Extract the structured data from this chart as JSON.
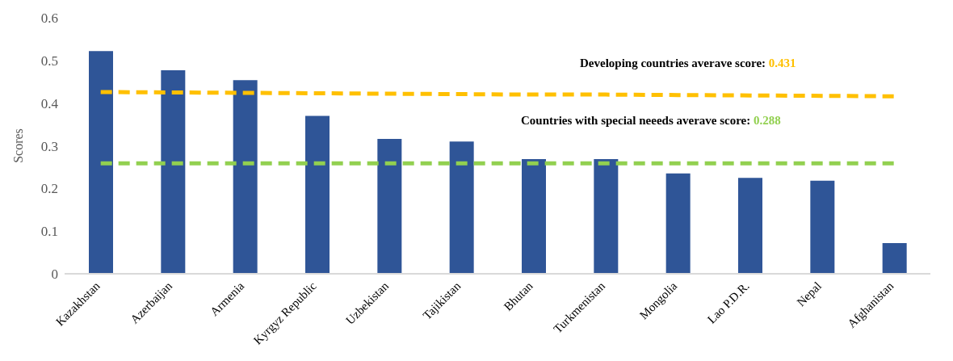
{
  "chart_data": {
    "type": "bar",
    "ylabel": "Scores",
    "categories": [
      "Kazakhstan",
      "Azerbaijan",
      "Armenia",
      "Kyrgyz Republic",
      "Uzbekistan",
      "Tajikistan",
      "Bhutan",
      "Turkmenistan",
      "Mongolia",
      "Lao P.D.R.",
      "Nepal",
      "Afghanistan"
    ],
    "series": [
      {
        "color": "#2f5597",
        "values": [
          0.522,
          0.477,
          0.454,
          0.37,
          0.316,
          0.31,
          0.269,
          0.269,
          0.235,
          0.225,
          0.218,
          0.072
        ]
      },
      {
        "type": "line",
        "color": "#ffc000",
        "values": [
          0.426,
          0.425,
          0.424,
          0.423,
          0.422,
          0.421,
          0.42,
          0.42,
          0.419,
          0.418,
          0.417,
          0.416
        ]
      },
      {
        "type": "line",
        "color": "#92d050",
        "values": [
          0.259,
          0.259,
          0.259,
          0.259,
          0.259,
          0.259,
          0.259,
          0.259,
          0.259,
          0.259,
          0.259,
          0.259
        ]
      }
    ],
    "annotations": [
      "Developing countries averave score: 0.431",
      "Countries with special neeeds averave score: 0.288"
    ],
    "ylim": [
      0,
      0.6
    ],
    "yticks": [
      0,
      0.1,
      0.2,
      0.3,
      0.4,
      0.5,
      0.6
    ],
    "grid": false,
    "legend": false,
    "line_style": "dashed",
    "marker": "none"
  }
}
